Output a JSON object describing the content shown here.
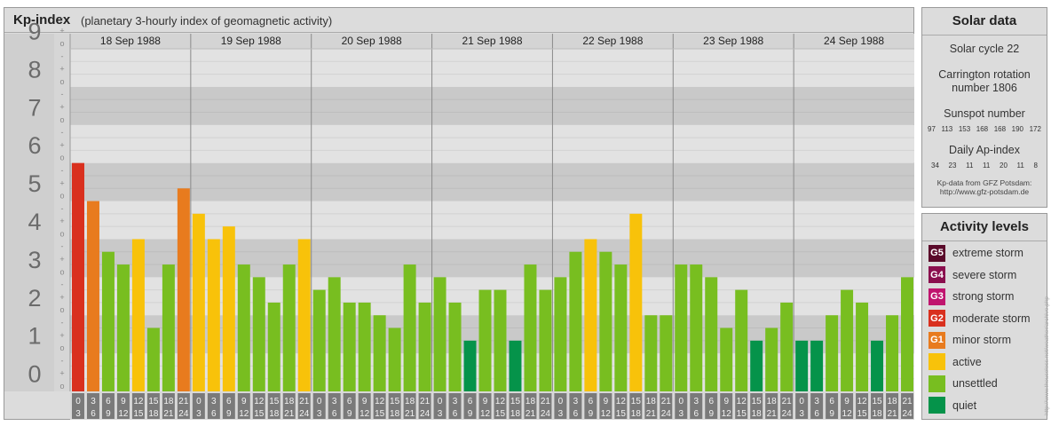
{
  "header": {
    "title": "Kp-index",
    "subtitle": "(planetary 3-hourly index of geomagnetic activity)"
  },
  "chart_data": {
    "type": "bar",
    "title": "Kp-index",
    "subtitle": "(planetary 3-hourly index of geomagnetic activity)",
    "ylim": [
      0,
      9
    ],
    "y_ticks": [
      "0",
      "1",
      "2",
      "3",
      "4",
      "5",
      "6",
      "7",
      "8",
      "9"
    ],
    "minor_ticks": [
      "o",
      "+",
      "-"
    ],
    "days": [
      "18 Sep 1988",
      "19 Sep 1988",
      "20 Sep 1988",
      "21 Sep 1988",
      "22 Sep 1988",
      "23 Sep 1988",
      "24 Sep 1988"
    ],
    "hour_labels_top": [
      "0",
      "3",
      "6",
      "9",
      "12",
      "15",
      "18",
      "21"
    ],
    "hour_labels_bottom": [
      "3",
      "6",
      "9",
      "12",
      "15",
      "18",
      "21",
      "24"
    ],
    "series": [
      {
        "values": [
          6.0,
          5.0,
          3.667,
          3.333,
          4.0,
          1.667,
          3.333,
          5.333,
          4.667,
          4.0,
          4.333,
          3.333,
          3.0,
          2.333,
          3.333,
          4.0,
          2.667,
          3.0,
          2.333,
          2.333,
          2.0,
          1.667,
          3.333,
          2.333,
          3.0,
          2.333,
          1.333,
          2.667,
          2.667,
          1.333,
          3.333,
          2.667,
          3.0,
          3.667,
          4.0,
          3.667,
          3.333,
          4.667,
          2.0,
          2.0,
          3.333,
          3.333,
          3.0,
          1.667,
          2.667,
          1.333,
          1.667,
          2.333,
          1.333,
          1.333,
          2.0,
          2.667,
          2.333,
          1.333,
          2.0,
          3.0
        ]
      }
    ],
    "grid": true
  },
  "solar": {
    "title": "Solar data",
    "cycle": "Solar cycle 22",
    "carrington_l1": "Carrington rotation",
    "carrington_l2": "number 1806",
    "sunspot_title": "Sunspot number",
    "sunspot_values": [
      "97",
      "113",
      "153",
      "168",
      "168",
      "190",
      "172"
    ],
    "ap_title": "Daily Ap-index",
    "ap_values": [
      "34",
      "23",
      "11",
      "11",
      "20",
      "11",
      "8"
    ],
    "source_l1": "Kp-data from GFZ Potsdam:",
    "source_l2": "http://www.gfz-potsdam.de"
  },
  "levels": {
    "title": "Activity levels",
    "items": [
      {
        "badge": "G5",
        "label": "extreme storm",
        "color": "#5a0a2a"
      },
      {
        "badge": "G4",
        "label": "severe storm",
        "color": "#8a0f4e"
      },
      {
        "badge": "G3",
        "label": "strong storm",
        "color": "#c0146e"
      },
      {
        "badge": "G2",
        "label": "moderate storm",
        "color": "#d9301e"
      },
      {
        "badge": "G1",
        "label": "minor storm",
        "color": "#e87b1e"
      },
      {
        "badge": "",
        "label": "active",
        "color": "#f8c20a"
      },
      {
        "badge": "",
        "label": "unsettled",
        "color": "#78be20"
      },
      {
        "badge": "",
        "label": "quiet",
        "color": "#05934a"
      }
    ]
  },
  "watermark": "http://www.theuseless.net/weather/archive.php"
}
